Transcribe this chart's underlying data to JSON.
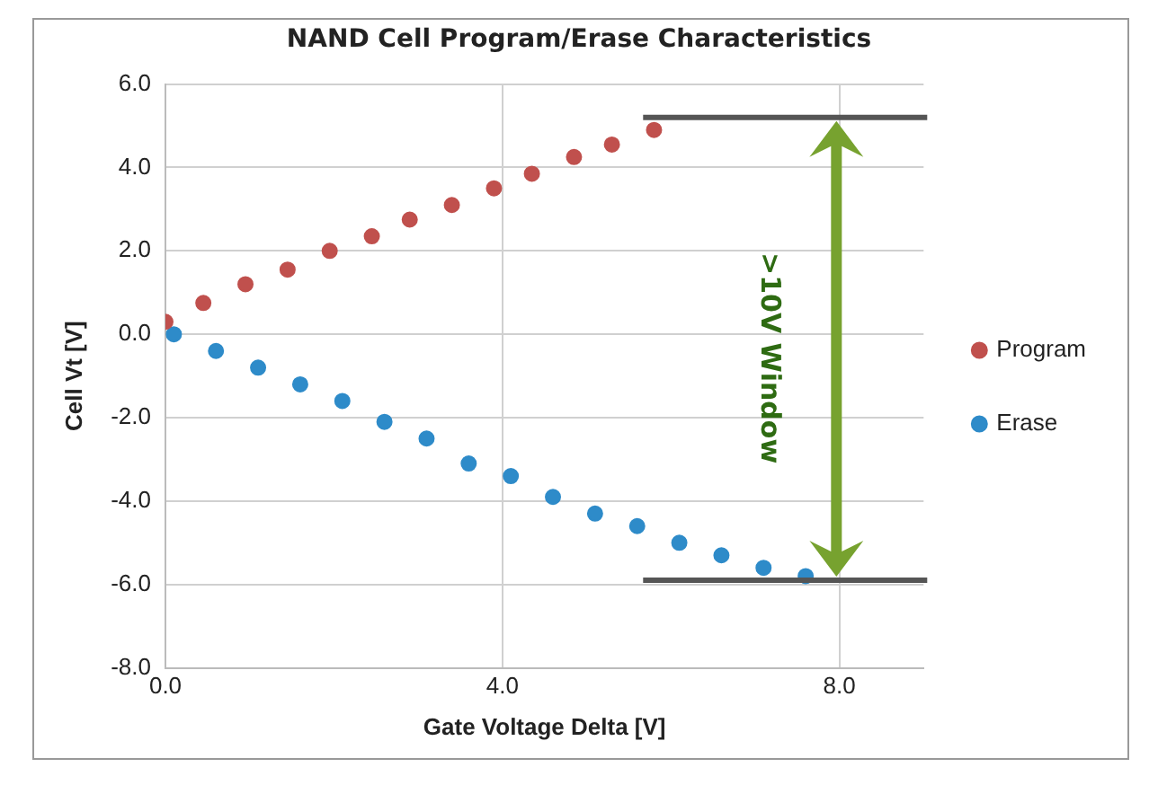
{
  "chart_data": {
    "type": "scatter",
    "title": "NAND Cell Program/Erase Characteristics",
    "xlabel": "Gate Voltage Delta [V]",
    "ylabel": "Cell Vt [V]",
    "series": [
      {
        "name": "Program",
        "color": "#c0504d",
        "x": [
          0,
          0.45,
          0.95,
          1.45,
          1.95,
          2.45,
          2.9,
          3.4,
          3.9,
          4.35,
          4.85,
          5.3,
          5.8
        ],
        "values": [
          0.3,
          0.75,
          1.2,
          1.55,
          2.0,
          2.35,
          2.75,
          3.1,
          3.5,
          3.85,
          4.25,
          4.55,
          4.9
        ]
      },
      {
        "name": "Erase",
        "color": "#2e8bc9",
        "x": [
          0.1,
          0.6,
          1.1,
          1.6,
          2.1,
          2.6,
          3.1,
          3.6,
          4.1,
          4.6,
          5.1,
          5.6,
          6.1,
          6.6,
          7.1,
          7.6
        ],
        "values": [
          0.0,
          -0.4,
          -0.8,
          -1.2,
          -1.6,
          -2.1,
          -2.5,
          -3.1,
          -3.4,
          -3.9,
          -4.3,
          -4.6,
          -5.0,
          -5.3,
          -5.6,
          -5.8
        ]
      }
    ],
    "xlim": [
      0,
      9
    ],
    "xticks": [
      {
        "value": 0,
        "label": "0.0"
      },
      {
        "value": 4,
        "label": "4.0"
      },
      {
        "value": 8,
        "label": "8.0"
      }
    ],
    "ylim": [
      -8,
      6
    ],
    "yticks": [
      {
        "value": -8,
        "label": "-8.0"
      },
      {
        "value": -6,
        "label": "-6.0"
      },
      {
        "value": -4,
        "label": "-4.0"
      },
      {
        "value": -2,
        "label": "-2.0"
      },
      {
        "value": 0,
        "label": "0.0"
      },
      {
        "value": 2,
        "label": "2.0"
      },
      {
        "value": 4,
        "label": "4.0"
      },
      {
        "value": 6,
        "label": "6.0"
      }
    ],
    "grid": true,
    "legend": "right",
    "marker": "circle",
    "ref_lines": [
      {
        "axis": "y",
        "value": 5.2,
        "color": "#555555"
      },
      {
        "axis": "y",
        "value": -5.9,
        "color": "#555555"
      }
    ],
    "annotations": [
      ">10V Window"
    ]
  }
}
